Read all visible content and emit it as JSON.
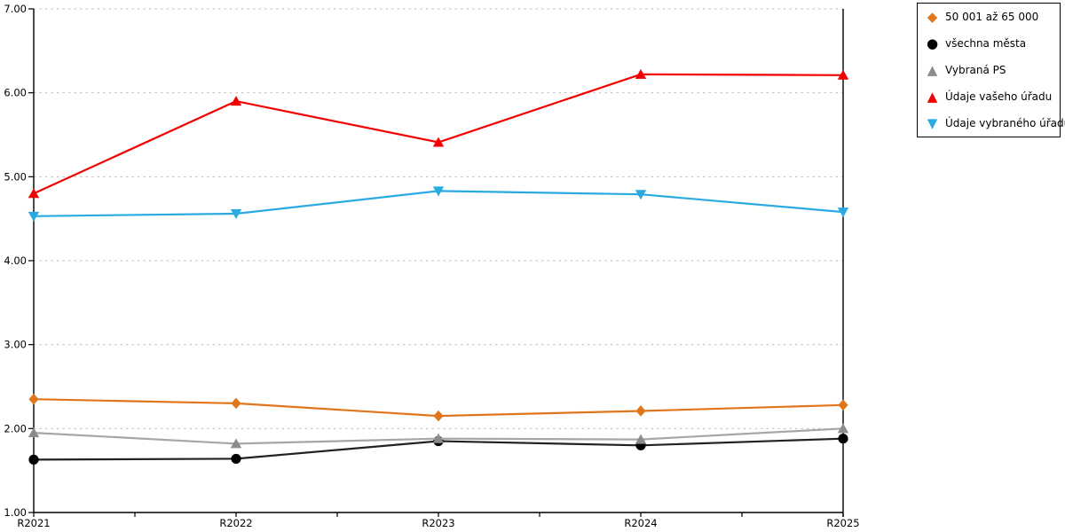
{
  "chart_data": {
    "type": "line",
    "categories": [
      "R2021",
      "R2022",
      "R2023",
      "R2024",
      "R2025"
    ],
    "series": [
      {
        "name": "50 001 až 65 000",
        "marker": "diamond-icon",
        "color": "#E0761B",
        "line_color": "#E0761B",
        "values": [
          2.35,
          2.3,
          2.15,
          2.21,
          2.28
        ]
      },
      {
        "name": "všechna města",
        "marker": "circle-icon",
        "color": "#000000",
        "line_color": "#222222",
        "values": [
          1.63,
          1.64,
          1.85,
          1.8,
          1.88
        ]
      },
      {
        "name": "Vybraná PS",
        "marker": "triangle-up-icon",
        "color": "#8C8C8C",
        "line_color": "#A6A6A6",
        "values": [
          1.95,
          1.82,
          1.88,
          1.87,
          2.0
        ]
      },
      {
        "name": "Údaje vašeho úřadu",
        "marker": "triangle-up-icon",
        "color": "#F40000",
        "line_color": "#F40000",
        "values": [
          4.8,
          5.9,
          5.41,
          6.22,
          6.21
        ]
      },
      {
        "name": "Údaje vybraného úřadu",
        "marker": "triangle-down-icon",
        "color": "#29ABE2",
        "line_color": "#29ABE2",
        "values": [
          4.53,
          4.56,
          4.83,
          4.79,
          4.58
        ]
      }
    ],
    "ylim": [
      1,
      7
    ],
    "y_ticks": [
      "1.00",
      "2.00",
      "3.00",
      "4.00",
      "5.00",
      "6.00",
      "7.00"
    ],
    "grid": "horizontal-dashed",
    "legend_position": "top-right"
  },
  "colors": {
    "background": "#FFFFFF",
    "axis": "#000000",
    "gridline": "#BEBEBE",
    "legend_border": "#000000",
    "label_text": "#000000"
  }
}
